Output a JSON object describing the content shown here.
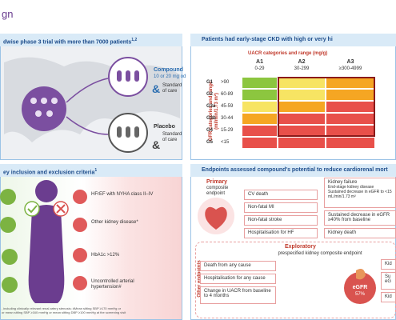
{
  "page_title": "gn",
  "trial": {
    "header": "dwise phase 3 trial with more than 7000 patients",
    "header_sup": "1,2",
    "compound": {
      "name": "Compound",
      "dose": "10 or 20 mg od",
      "care": "Standard of care"
    },
    "placebo": {
      "name": "Placebo",
      "care": "Standard of care"
    }
  },
  "ckd": {
    "header": "Patients had early-stage CKD with high or very hi",
    "uacr_title": "UACR categories and range (mg/g)",
    "gfr_title": "GFR categories and range (ml/min/1.73 m²)",
    "columns": [
      {
        "label": "A1",
        "range": "0-29"
      },
      {
        "label": "A2",
        "range": "30-299"
      },
      {
        "label": "A3",
        "range": "≥300-4999"
      }
    ],
    "rows": [
      {
        "label": "G1",
        "range": ">90"
      },
      {
        "label": "G2",
        "range": "60-89"
      },
      {
        "label": "G3a",
        "range": "45-59"
      },
      {
        "label": "G3b",
        "range": "30-44"
      },
      {
        "label": "G4",
        "range": "15-29"
      },
      {
        "label": "G5",
        "range": "<15"
      }
    ]
  },
  "criteria": {
    "header": "ey inclusion and exclusion criteria",
    "header_sup": "1",
    "items": [
      "HFrEF with NYHA class II–IV",
      "Other kidney disease*",
      "HbA1c >12%",
      "Uncontrolled arterial hypertension#"
    ],
    "footnote": ", including clinically relevant renal artery stenosis; #Mean sitting SBP ≥170 mmHg or\nor mean sitting SBP ≥160 mmHg or mean sitting DBP ≥100 mmHg at the screening visit"
  },
  "endpoints": {
    "header": "Endpoints assessed compound's potential to reduce cardiorenal mort",
    "primary_label": "Primary",
    "primary_sub": "composite endpoint",
    "primary_items": [
      "CV death",
      "Non-fatal MI",
      "Non-fatal stroke",
      "Hospitalisation for HF"
    ],
    "kidney_failure": "Kidney failure",
    "kidney_failure_items": [
      "End-stage kidney disease",
      "Sustained decrease in eGFR to <15 mL/min/1.73 m²"
    ],
    "kidney_items": [
      "Sustained decrease in eGFR ≥40% from baseline",
      "Kidney death"
    ],
    "other_label": "Other endpoints",
    "other_items": [
      "Death from any cause",
      "Hospitalisation for any cause",
      "Change in UACR from baseline to 4 months"
    ],
    "exploratory_label": "Exploratory",
    "exploratory_sub": "prespecified kidney composite endpoint",
    "egfr_label": "eGFR",
    "egfr_value": "57%",
    "cropped_items": [
      "Kid",
      "Su eG",
      "Kid"
    ]
  }
}
